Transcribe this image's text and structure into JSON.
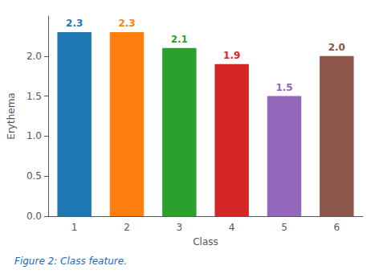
{
  "chart_data": {
    "type": "bar",
    "caption": "Figure 2: Class feature.",
    "xlabel": "Class",
    "ylabel": "Erythema",
    "categories": [
      "1",
      "2",
      "3",
      "4",
      "5",
      "6"
    ],
    "values": [
      2.3,
      2.3,
      2.1,
      1.9,
      1.5,
      2.0
    ],
    "value_labels": [
      "2.3",
      "2.3",
      "2.1",
      "1.9",
      "1.5",
      "2.0"
    ],
    "colors": [
      "#1f77b4",
      "#ff7f0e",
      "#2ca02c",
      "#d62728",
      "#9467bd",
      "#8c564b"
    ],
    "ylim": [
      0.0,
      2.5
    ],
    "yticks": [
      {
        "value": 0.0,
        "label": "0.0"
      },
      0.5,
      {
        "value": 1.0,
        "label": "1.0"
      },
      1.5,
      {
        "value": 2.0,
        "label": "2.0"
      }
    ],
    "data_labels": true,
    "grid": false
  }
}
